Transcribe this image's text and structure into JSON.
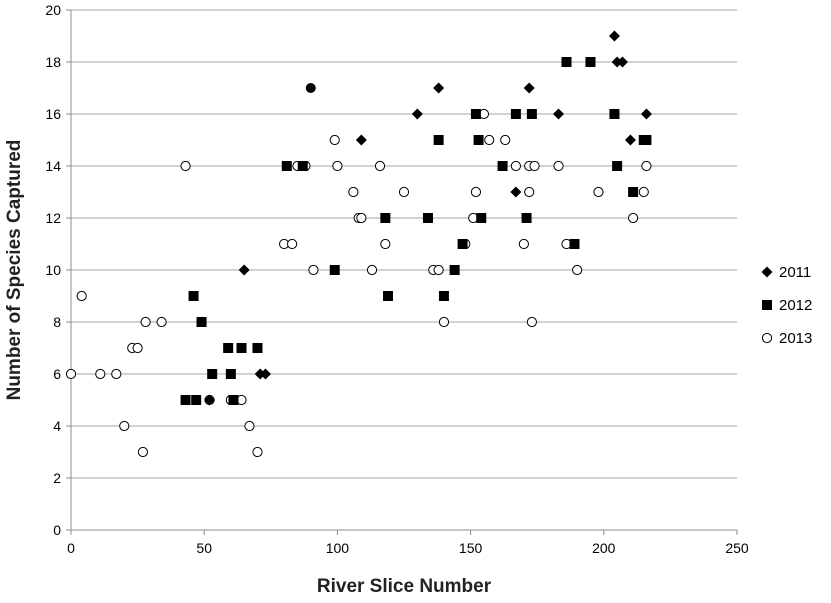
{
  "chart_data": {
    "type": "scatter",
    "xlabel": "River Slice Number",
    "ylabel": "Number of Species Captured",
    "xlim": [
      0,
      250
    ],
    "ylim": [
      0,
      20
    ],
    "xticks": [
      0,
      50,
      100,
      150,
      200,
      250
    ],
    "yticks": [
      0,
      2,
      4,
      6,
      8,
      10,
      12,
      14,
      16,
      18,
      20
    ],
    "grid": "horizontal",
    "legend_position": "right",
    "series": [
      {
        "name": "2011",
        "marker": "diamond",
        "points": [
          [
            52,
            5
          ],
          [
            65,
            10
          ],
          [
            71,
            6
          ],
          [
            73,
            6
          ],
          [
            109,
            15
          ],
          [
            130,
            16
          ],
          [
            138,
            17
          ],
          [
            167,
            13
          ],
          [
            172,
            17
          ],
          [
            183,
            16
          ],
          [
            204,
            19
          ],
          [
            205,
            18
          ],
          [
            207,
            18
          ],
          [
            210,
            15
          ],
          [
            216,
            16
          ]
        ]
      },
      {
        "name": "2012",
        "marker": "square",
        "points": [
          [
            43,
            5
          ],
          [
            46,
            9
          ],
          [
            47,
            5
          ],
          [
            49,
            8
          ],
          [
            53,
            6
          ],
          [
            59,
            7
          ],
          [
            60,
            6
          ],
          [
            61,
            5
          ],
          [
            64,
            7
          ],
          [
            70,
            7
          ],
          [
            81,
            14
          ],
          [
            87,
            14
          ],
          [
            99,
            10
          ],
          [
            118,
            12
          ],
          [
            119,
            9
          ],
          [
            134,
            12
          ],
          [
            138,
            15
          ],
          [
            140,
            9
          ],
          [
            144,
            10
          ],
          [
            147,
            11
          ],
          [
            152,
            16
          ],
          [
            153,
            15
          ],
          [
            154,
            12
          ],
          [
            162,
            14
          ],
          [
            167,
            16
          ],
          [
            171,
            12
          ],
          [
            173,
            16
          ],
          [
            186,
            18
          ],
          [
            189,
            11
          ],
          [
            195,
            18
          ],
          [
            204,
            16
          ],
          [
            205,
            14
          ],
          [
            211,
            13
          ],
          [
            215,
            15
          ],
          [
            216,
            15
          ]
        ]
      },
      {
        "name": "2013",
        "marker": "open-circle",
        "points": [
          [
            0,
            6
          ],
          [
            4,
            9
          ],
          [
            11,
            6
          ],
          [
            17,
            6
          ],
          [
            20,
            4
          ],
          [
            23,
            7
          ],
          [
            25,
            7
          ],
          [
            27,
            3
          ],
          [
            28,
            8
          ],
          [
            34,
            8
          ],
          [
            43,
            14
          ],
          [
            52,
            5
          ],
          [
            60,
            5
          ],
          [
            62,
            5
          ],
          [
            64,
            5
          ],
          [
            67,
            4
          ],
          [
            70,
            3
          ],
          [
            80,
            11
          ],
          [
            83,
            11
          ],
          [
            85,
            14
          ],
          [
            88,
            14
          ],
          [
            91,
            10
          ],
          [
            99,
            15
          ],
          [
            100,
            14
          ],
          [
            106,
            13
          ],
          [
            108,
            12
          ],
          [
            109,
            12
          ],
          [
            113,
            10
          ],
          [
            116,
            14
          ],
          [
            118,
            11
          ],
          [
            125,
            13
          ],
          [
            136,
            10
          ],
          [
            138,
            10
          ],
          [
            140,
            8
          ],
          [
            148,
            11
          ],
          [
            151,
            12
          ],
          [
            152,
            13
          ],
          [
            155,
            16
          ],
          [
            157,
            15
          ],
          [
            163,
            15
          ],
          [
            167,
            14
          ],
          [
            170,
            11
          ],
          [
            172,
            13
          ],
          [
            172,
            14
          ],
          [
            173,
            8
          ],
          [
            174,
            14
          ],
          [
            183,
            14
          ],
          [
            186,
            11
          ],
          [
            190,
            10
          ],
          [
            198,
            13
          ],
          [
            211,
            12
          ],
          [
            215,
            13
          ],
          [
            216,
            14
          ]
        ]
      },
      {
        "name": "",
        "marker": "filled-circle",
        "points": [
          [
            90,
            17
          ]
        ]
      }
    ]
  }
}
